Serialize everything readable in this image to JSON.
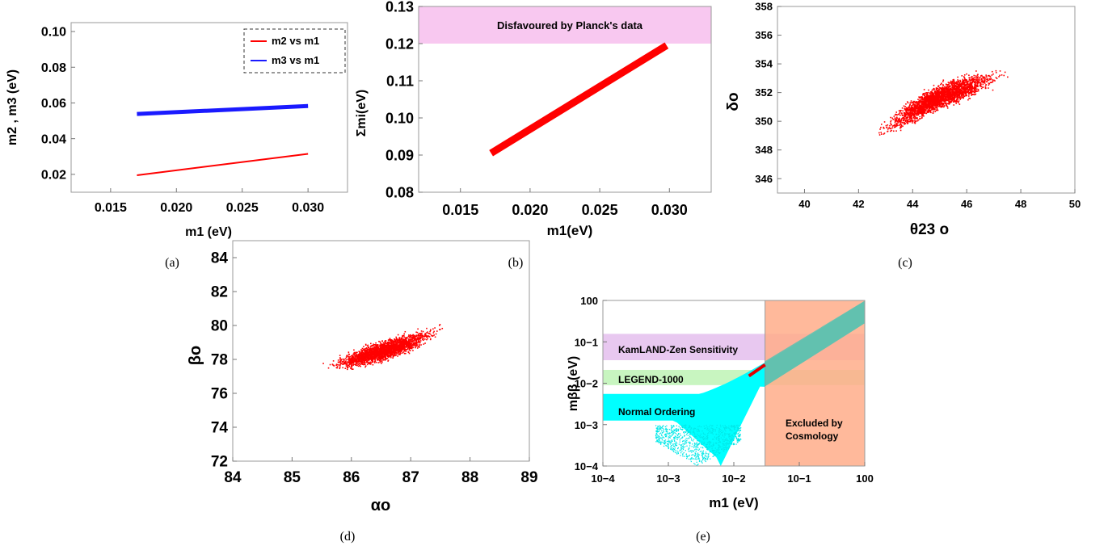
{
  "captions": [
    "(a)",
    "(b)",
    "(c)",
    "(d)",
    "(e)"
  ],
  "colors": {
    "red": "#ff0000",
    "blue": "#1a1aff",
    "planck_band": "#f8c8f0",
    "kamland_band": "#e8c8f0",
    "legend_band": "#c8f5c0",
    "normal_ordering": "#00ffff",
    "cosmology_band": "#ffad8a"
  },
  "chart_data": [
    {
      "id": "a",
      "type": "line",
      "xlabel": "m1 (eV)",
      "ylabel": "m2 , m3 (eV)",
      "xlim": [
        0.012,
        0.033
      ],
      "ylim": [
        0.01,
        0.105
      ],
      "xticks": [
        "0.015",
        "0.020",
        "0.025",
        "0.030"
      ],
      "yticks": [
        "0.02",
        "0.04",
        "0.06",
        "0.08",
        "0.10"
      ],
      "legend_position": "top-right",
      "series": [
        {
          "name": "m2 vs m1",
          "color": "#ff0000",
          "x": [
            0.017,
            0.03
          ],
          "y": [
            0.0195,
            0.0315
          ]
        },
        {
          "name": "m3 vs m1",
          "color": "#1a1aff",
          "x": [
            0.017,
            0.03
          ],
          "y": [
            0.0538,
            0.0583
          ]
        }
      ]
    },
    {
      "id": "b",
      "type": "line",
      "xlabel": "m1(eV)",
      "ylabel": "Σmi(eV)",
      "xlim": [
        0.012,
        0.033
      ],
      "ylim": [
        0.08,
        0.13
      ],
      "xticks": [
        "0.015",
        "0.020",
        "0.025",
        "0.030"
      ],
      "yticks": [
        "0.08",
        "0.09",
        "0.10",
        "0.11",
        "0.12",
        "0.13"
      ],
      "annotation": "Disfavoured by Planck's data",
      "excluded_region_y": [
        0.12,
        0.13
      ],
      "series": [
        {
          "color": "#ff0000",
          "x": [
            0.0172,
            0.0298
          ],
          "y": [
            0.0905,
            0.1195
          ]
        }
      ]
    },
    {
      "id": "c",
      "type": "scatter",
      "xlabel": "θ23 o",
      "ylabel": "δo",
      "xlim": [
        39,
        50
      ],
      "ylim": [
        345,
        358
      ],
      "xticks": [
        "40",
        "42",
        "44",
        "46",
        "48",
        "50"
      ],
      "yticks": [
        "346",
        "348",
        "350",
        "352",
        "354",
        "356",
        "358"
      ],
      "region": {
        "x_range": [
          42.2,
          47.8
        ],
        "center_line": [
          [
            42.3,
            348.8
          ],
          [
            43.5,
            350.2
          ],
          [
            44.5,
            351.3
          ],
          [
            45.5,
            352.1
          ],
          [
            46.5,
            352.8
          ],
          [
            47.5,
            353.4
          ]
        ],
        "spread_y": 1.2
      }
    },
    {
      "id": "d",
      "type": "scatter",
      "xlabel": "αo",
      "ylabel": "βo",
      "xlim": [
        84,
        89
      ],
      "ylim": [
        72,
        85
      ],
      "xticks": [
        "84",
        "85",
        "86",
        "87",
        "88",
        "89"
      ],
      "yticks": [
        "72",
        "74",
        "76",
        "78",
        "80",
        "82",
        "84"
      ],
      "region": {
        "x_range": [
          85.4,
          87.7
        ],
        "center_line": [
          [
            85.4,
            77.5
          ],
          [
            86.0,
            78.0
          ],
          [
            86.6,
            78.6
          ],
          [
            87.2,
            79.3
          ],
          [
            87.7,
            80.3
          ]
        ],
        "spread_y": 0.8
      }
    },
    {
      "id": "e",
      "type": "scatter",
      "xlabel": "m1 (eV)",
      "ylabel": "mββ (eV)",
      "xscale": "log",
      "yscale": "log",
      "xlim": [
        0.0001,
        1
      ],
      "ylim": [
        0.0001,
        1
      ],
      "xticks": [
        "10−4",
        "10−3",
        "10−2",
        "10−1",
        "100"
      ],
      "yticks": [
        "10−4",
        "10−3",
        "10−2",
        "10−1",
        "100"
      ],
      "bands": [
        {
          "name": "KamLAND-Zen Sensitivity",
          "y_range": [
            0.036,
            0.156
          ],
          "color": "#e8c8f0"
        },
        {
          "name": "LEGEND-1000",
          "y_range": [
            0.009,
            0.021
          ],
          "color": "#c8f5c0"
        }
      ],
      "excluded_x": {
        "name": "Excluded by Cosmology",
        "x_range": [
          0.03,
          1
        ],
        "color": "#ffad8a"
      },
      "normal_ordering_label": "Normal Ordering",
      "red_segment": {
        "x": [
          0.017,
          0.03
        ],
        "y": [
          0.015,
          0.028
        ]
      }
    }
  ]
}
